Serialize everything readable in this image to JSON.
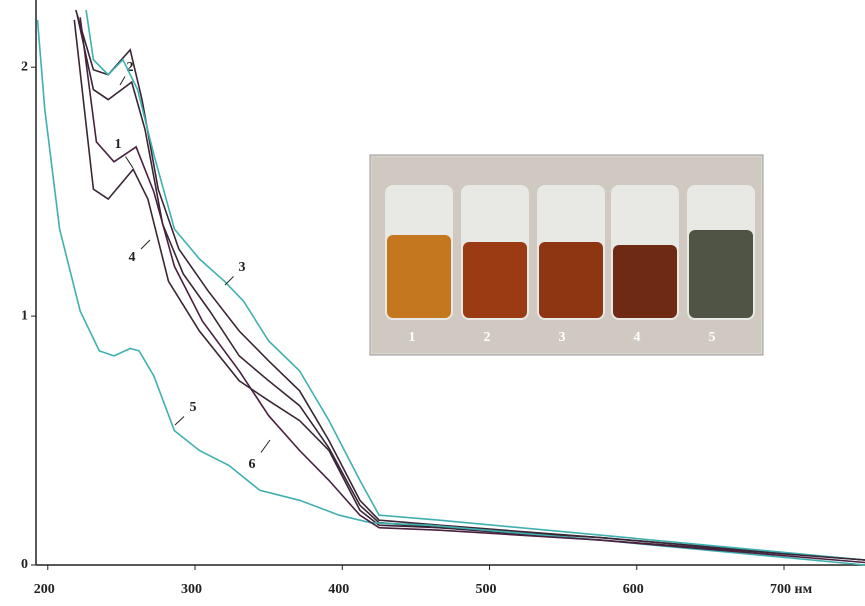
{
  "chart_data": {
    "type": "line",
    "xlim": [
      192,
      755
    ],
    "ylim": [
      0,
      2.27
    ],
    "xticks": [
      200,
      300,
      400,
      500,
      600,
      {
        "value": 700,
        "label": "700 нм"
      }
    ],
    "yticks": [
      0,
      1,
      2
    ],
    "series": [
      {
        "name": "1",
        "color": "#3a2636",
        "x": [
          218,
          231,
          241,
          258,
          268,
          282,
          303,
          330,
          350,
          371,
          391,
          412,
          425,
          466,
          575,
          755
        ],
        "values": [
          2.19,
          1.51,
          1.47,
          1.59,
          1.47,
          1.14,
          0.94,
          0.74,
          0.66,
          0.58,
          0.46,
          0.22,
          0.16,
          0.15,
          0.11,
          0.02
        ]
      },
      {
        "name": "2",
        "color": "#3a2636",
        "x": [
          219,
          231,
          241,
          256,
          264,
          275,
          289,
          309,
          330,
          350,
          371,
          391,
          412,
          425,
          466,
          575,
          755
        ],
        "values": [
          2.23,
          1.99,
          1.97,
          2.07,
          1.87,
          1.51,
          1.27,
          1.1,
          0.94,
          0.82,
          0.7,
          0.5,
          0.26,
          0.18,
          0.16,
          0.11,
          0.02
        ]
      },
      {
        "name": "3",
        "color": "#3fb0b0",
        "x": [
          226,
          231,
          241,
          251,
          261,
          272,
          286,
          303,
          320,
          333,
          350,
          371,
          391,
          412,
          425,
          466,
          575,
          755
        ],
        "values": [
          2.23,
          2.03,
          1.97,
          2.03,
          1.91,
          1.65,
          1.35,
          1.23,
          1.14,
          1.06,
          0.9,
          0.78,
          0.58,
          0.34,
          0.2,
          0.18,
          0.12,
          0.02
        ]
      },
      {
        "name": "4",
        "color": "#3a2636",
        "x": [
          220,
          231,
          241,
          257,
          266,
          278,
          292,
          310,
          330,
          350,
          371,
          391,
          412,
          425,
          466,
          575,
          755
        ],
        "values": [
          2.21,
          1.91,
          1.87,
          1.94,
          1.75,
          1.37,
          1.17,
          1.02,
          0.84,
          0.74,
          0.64,
          0.47,
          0.24,
          0.17,
          0.15,
          0.1,
          0.02
        ]
      },
      {
        "name": "5",
        "color": "#3fb0b0",
        "x": [
          193,
          198,
          208,
          222,
          235,
          245,
          256,
          262,
          272,
          286,
          303,
          323,
          344,
          371,
          398,
          419,
          459,
          575,
          755
        ],
        "values": [
          2.19,
          1.83,
          1.35,
          1.02,
          0.86,
          0.84,
          0.87,
          0.86,
          0.76,
          0.54,
          0.46,
          0.4,
          0.3,
          0.26,
          0.2,
          0.17,
          0.16,
          0.1,
          0
        ]
      },
      {
        "name": "6",
        "color": "#4a2040",
        "x": [
          222,
          233,
          245,
          260,
          272,
          286,
          305,
          330,
          350,
          371,
          391,
          412,
          425,
          466,
          575,
          755
        ],
        "values": [
          2.2,
          1.7,
          1.62,
          1.68,
          1.5,
          1.2,
          0.98,
          0.78,
          0.6,
          0.46,
          0.34,
          0.2,
          0.15,
          0.14,
          0.1,
          0.01
        ]
      }
    ],
    "inset_labels": [
      "1",
      "2",
      "3",
      "4",
      "5"
    ]
  }
}
